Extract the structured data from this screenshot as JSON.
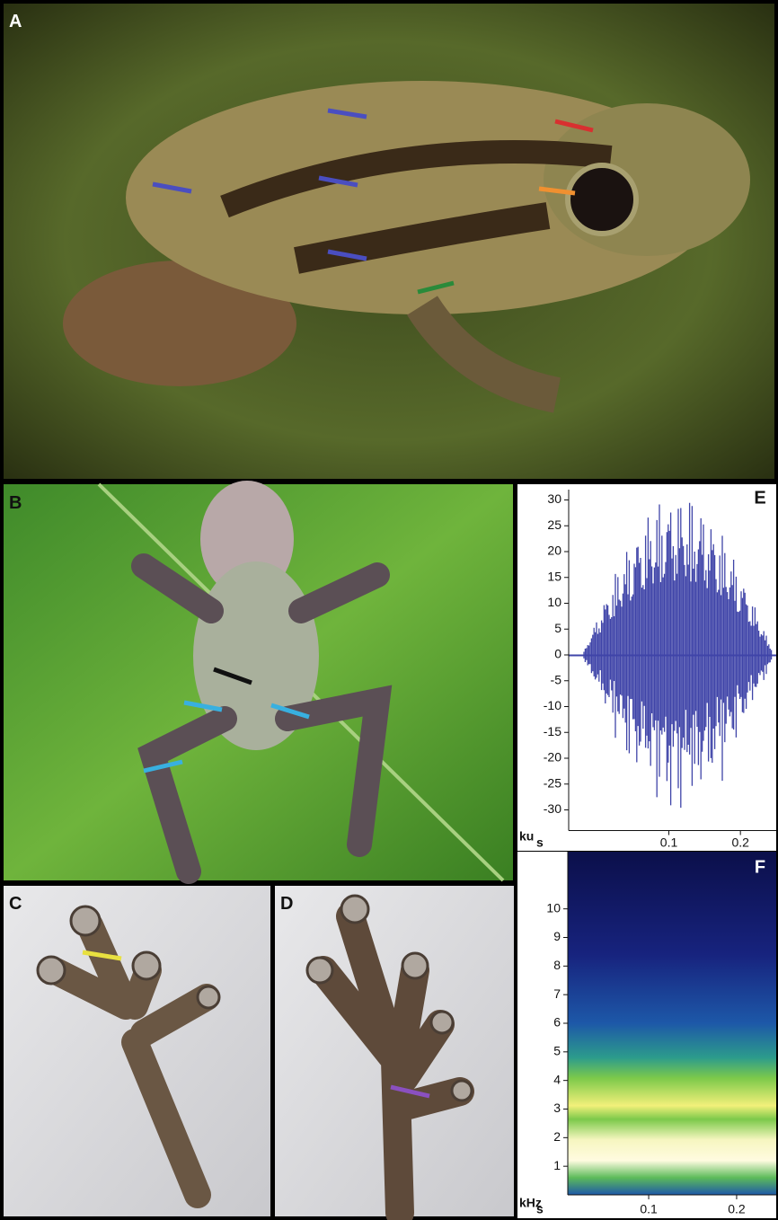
{
  "panels": {
    "a": "A",
    "b": "B",
    "c": "C",
    "d": "D"
  },
  "waveform": {
    "label": "E",
    "y_unit": "ku",
    "x_unit": "s",
    "ylim": [
      -34,
      32
    ],
    "yticks": [
      -30,
      -25,
      -20,
      -15,
      -10,
      -5,
      0,
      5,
      10,
      15,
      20,
      25,
      30
    ],
    "xlim": [
      -0.04,
      0.25
    ],
    "xticks": [
      0.1,
      0.2
    ],
    "color": "#3f44a8"
  },
  "spectrogram": {
    "label": "F",
    "y_unit": "kHz",
    "x_unit": "s",
    "ylim": [
      0,
      12
    ],
    "yticks": [
      1,
      2,
      3,
      4,
      5,
      6,
      7,
      8,
      9,
      10
    ],
    "xlim": [
      0.008,
      0.245
    ],
    "xticks": [
      0.1,
      0.2
    ]
  }
}
